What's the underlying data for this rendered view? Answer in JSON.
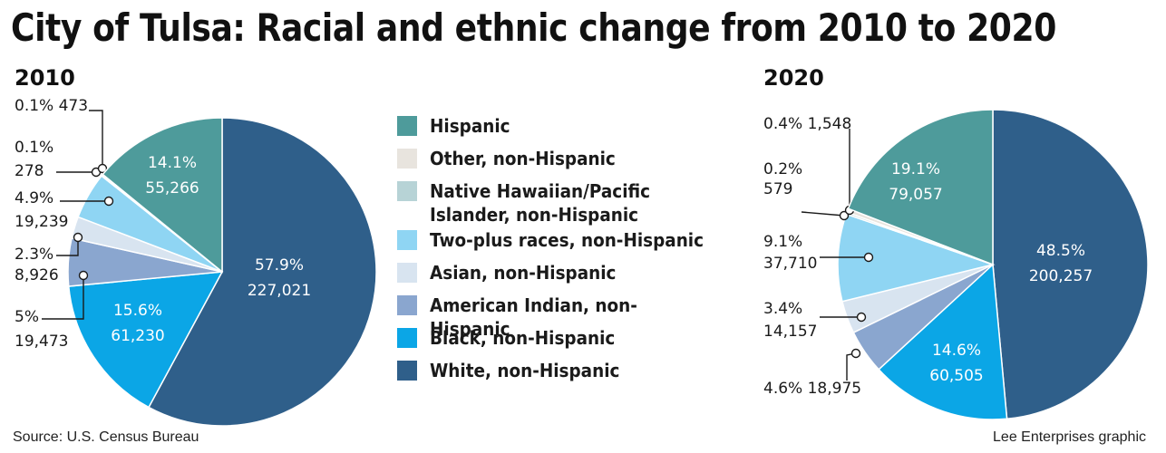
{
  "title": "City of Tulsa: Racial and ethnic change from 2010 to 2020",
  "source": "Source: U.S. Census Bureau",
  "credit": "Lee Enterprises graphic",
  "colors": {
    "Hispanic": "#4e9b9b",
    "Other": "#e8e4de",
    "NativeHawaiian": "#b7d3d6",
    "TwoPlus": "#8fd5f3",
    "Asian": "#d8e4f0",
    "AmericanIndian": "#8aa6cf",
    "Black": "#0ba6e6",
    "White": "#2f5f8a"
  },
  "legend": [
    {
      "key": "Hispanic",
      "label": "Hispanic"
    },
    {
      "key": "Other",
      "label": "Other, non-Hispanic"
    },
    {
      "key": "NativeHawaiian",
      "label": "Native Hawaiian/Pacific\nIslander, non-Hispanic"
    },
    {
      "key": "TwoPlus",
      "label": "Two-plus races, non-Hispanic"
    },
    {
      "key": "Asian",
      "label": "Asian, non-Hispanic"
    },
    {
      "key": "AmericanIndian",
      "label": "American Indian, non-Hispanic"
    },
    {
      "key": "Black",
      "label": "Black, non-Hispanic"
    },
    {
      "key": "White",
      "label": "White, non-Hispanic"
    }
  ],
  "chart_data": [
    {
      "type": "pie",
      "title": "2010",
      "slices": [
        {
          "key": "White",
          "percent": "57.9%",
          "count": "227,021",
          "value": 57.9
        },
        {
          "key": "Black",
          "percent": "15.6%",
          "count": "61,230",
          "value": 15.6
        },
        {
          "key": "AmericanIndian",
          "percent": "5%",
          "count": "19,473",
          "value": 5.0
        },
        {
          "key": "Asian",
          "percent": "2.3%",
          "count": "8,926",
          "value": 2.3
        },
        {
          "key": "TwoPlus",
          "percent": "4.9%",
          "count": "19,239",
          "value": 4.9
        },
        {
          "key": "NativeHawaiian",
          "percent": "0.1%",
          "count": "278",
          "value": 0.1
        },
        {
          "key": "Other",
          "percent": "0.1%",
          "count": "473",
          "value": 0.1
        },
        {
          "key": "Hispanic",
          "percent": "14.1%",
          "count": "55,266",
          "value": 14.1
        }
      ]
    },
    {
      "type": "pie",
      "title": "2020",
      "slices": [
        {
          "key": "White",
          "percent": "48.5%",
          "count": "200,257",
          "value": 48.5
        },
        {
          "key": "Black",
          "percent": "14.6%",
          "count": "60,505",
          "value": 14.6
        },
        {
          "key": "AmericanIndian",
          "percent": "4.6%",
          "count": "18,975",
          "value": 4.6
        },
        {
          "key": "Asian",
          "percent": "3.4%",
          "count": "14,157",
          "value": 3.4
        },
        {
          "key": "TwoPlus",
          "percent": "9.1%",
          "count": "37,710",
          "value": 9.1
        },
        {
          "key": "NativeHawaiian",
          "percent": "0.2%",
          "count": "579",
          "value": 0.2
        },
        {
          "key": "Other",
          "percent": "0.4%",
          "count": "1,548",
          "value": 0.4
        },
        {
          "key": "Hispanic",
          "percent": "19.1%",
          "count": "79,057",
          "value": 19.1
        }
      ]
    }
  ]
}
